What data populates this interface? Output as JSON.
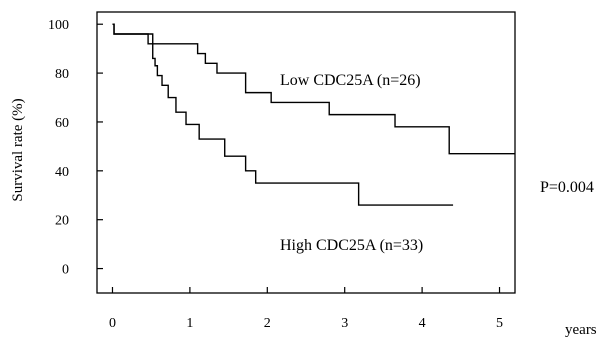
{
  "chart_data": {
    "type": "line",
    "step": true,
    "title": "",
    "xlabel": "years",
    "ylabel": "Survival rate (%)",
    "xlim": [
      -0.2,
      5.2
    ],
    "ylim": [
      -10,
      105
    ],
    "xticks": [
      0,
      1,
      2,
      3,
      4,
      5
    ],
    "yticks": [
      0,
      20,
      40,
      60,
      80,
      100
    ],
    "grid": false,
    "legend": "none",
    "series": [
      {
        "name": "Low CDC25A (n=26)",
        "x": [
          0,
          0.02,
          0.04,
          0.4,
          0.46,
          1.1,
          1.2,
          1.35,
          1.72,
          2.05,
          2.8,
          3.65,
          4.35,
          5.2
        ],
        "y": [
          100,
          96,
          96,
          96,
          92,
          88,
          84,
          80,
          72,
          68,
          63,
          58,
          47,
          47
        ]
      },
      {
        "name": "High CDC25A (n=33)",
        "x": [
          0,
          0.02,
          0.04,
          0.46,
          0.52,
          0.55,
          0.58,
          0.64,
          0.72,
          0.82,
          0.95,
          1.12,
          1.45,
          1.72,
          1.85,
          3.18,
          4.4
        ],
        "y": [
          100,
          96,
          96,
          96,
          86,
          83,
          79,
          75,
          70,
          64,
          59,
          53,
          46,
          40,
          35,
          26,
          26
        ]
      }
    ],
    "annotations": [
      "P=0.004"
    ]
  }
}
